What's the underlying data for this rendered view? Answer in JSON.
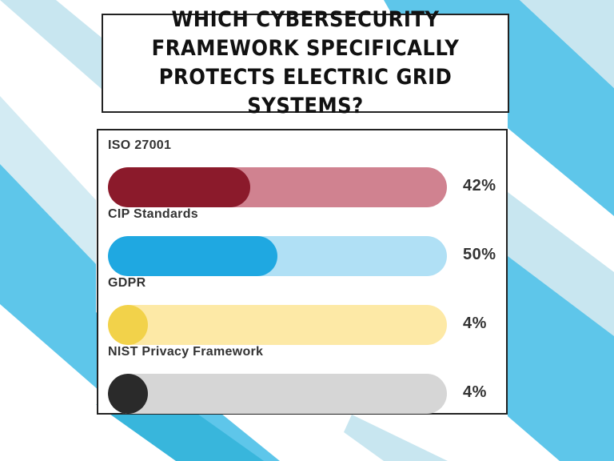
{
  "title": "WHICH CYBERSECURITY FRAMEWORK SPECIFICALLY PROTECTS ELECTRIC GRID SYSTEMS?",
  "colors": {
    "stripe_light": "#c8e6f0",
    "stripe_mid": "#5ec6ea",
    "stripe_dark": "#38b6dc"
  },
  "chart_data": {
    "type": "bar",
    "orientation": "horizontal",
    "title": "WHICH CYBERSECURITY FRAMEWORK SPECIFICALLY PROTECTS ELECTRIC GRID SYSTEMS?",
    "unit": "%",
    "xlim": [
      0,
      100
    ],
    "grid": false,
    "options": [
      {
        "label": "ISO 27001",
        "value": 42,
        "value_label": "42%",
        "fill_color": "#8b1a2b",
        "track_color": "#d08290"
      },
      {
        "label": "CIP Standards",
        "value": 50,
        "value_label": "50%",
        "fill_color": "#1fa8e1",
        "track_color": "#b0e0f5"
      },
      {
        "label": "GDPR",
        "value": 4,
        "value_label": "4%",
        "fill_color": "#f2d24a",
        "track_color": "#fde9a6"
      },
      {
        "label": "NIST Privacy Framework",
        "value": 4,
        "value_label": "4%",
        "fill_color": "#2a2a2a",
        "track_color": "#d6d6d6"
      }
    ]
  }
}
